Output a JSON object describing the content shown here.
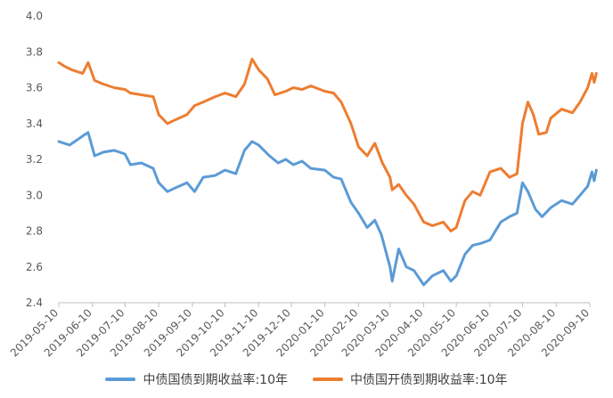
{
  "chart_data": {
    "type": "line",
    "title": "",
    "xlabel": "",
    "ylabel": "",
    "ylim": [
      2.4,
      4.0
    ],
    "yticks": [
      "2.4",
      "2.6",
      "2.8",
      "3.0",
      "3.2",
      "3.4",
      "3.6",
      "3.8",
      "4.0"
    ],
    "xticks": [
      "2019-05-10",
      "2019-06-10",
      "2019-07-10",
      "2019-08-10",
      "2019-09-10",
      "2019-10-10",
      "2019-11-10",
      "2019-12-10",
      "2020-01-10",
      "2020-02-10",
      "2020-03-10",
      "2020-04-10",
      "2020-05-10",
      "2020-06-10",
      "2020-07-10",
      "2020-08-10",
      "2020-09-10"
    ],
    "grid": false,
    "legend_position": "bottom",
    "series": [
      {
        "name": "中债国债到期收益率:10年",
        "color": "#5B9BD5",
        "points": [
          [
            "2019-05-10",
            3.3
          ],
          [
            "2019-05-20",
            3.28
          ],
          [
            "2019-06-01",
            3.33
          ],
          [
            "2019-06-06",
            3.35
          ],
          [
            "2019-06-12",
            3.22
          ],
          [
            "2019-06-20",
            3.24
          ],
          [
            "2019-06-30",
            3.25
          ],
          [
            "2019-07-10",
            3.23
          ],
          [
            "2019-07-15",
            3.17
          ],
          [
            "2019-07-25",
            3.18
          ],
          [
            "2019-08-05",
            3.15
          ],
          [
            "2019-08-10",
            3.07
          ],
          [
            "2019-08-18",
            3.02
          ],
          [
            "2019-08-25",
            3.04
          ],
          [
            "2019-09-05",
            3.07
          ],
          [
            "2019-09-12",
            3.02
          ],
          [
            "2019-09-20",
            3.1
          ],
          [
            "2019-10-01",
            3.11
          ],
          [
            "2019-10-10",
            3.14
          ],
          [
            "2019-10-20",
            3.12
          ],
          [
            "2019-10-28",
            3.25
          ],
          [
            "2019-11-04",
            3.3
          ],
          [
            "2019-11-10",
            3.28
          ],
          [
            "2019-11-20",
            3.22
          ],
          [
            "2019-11-28",
            3.18
          ],
          [
            "2019-12-05",
            3.2
          ],
          [
            "2019-12-12",
            3.17
          ],
          [
            "2019-12-20",
            3.19
          ],
          [
            "2019-12-28",
            3.15
          ],
          [
            "2020-01-10",
            3.14
          ],
          [
            "2020-01-18",
            3.1
          ],
          [
            "2020-01-25",
            3.09
          ],
          [
            "2020-02-03",
            2.96
          ],
          [
            "2020-02-10",
            2.9
          ],
          [
            "2020-02-18",
            2.82
          ],
          [
            "2020-02-25",
            2.86
          ],
          [
            "2020-03-02",
            2.78
          ],
          [
            "2020-03-10",
            2.6
          ],
          [
            "2020-03-12",
            2.52
          ],
          [
            "2020-03-18",
            2.7
          ],
          [
            "2020-03-25",
            2.6
          ],
          [
            "2020-04-01",
            2.58
          ],
          [
            "2020-04-10",
            2.5
          ],
          [
            "2020-04-18",
            2.55
          ],
          [
            "2020-04-28",
            2.58
          ],
          [
            "2020-05-05",
            2.52
          ],
          [
            "2020-05-10",
            2.55
          ],
          [
            "2020-05-18",
            2.67
          ],
          [
            "2020-05-25",
            2.72
          ],
          [
            "2020-06-01",
            2.73
          ],
          [
            "2020-06-10",
            2.75
          ],
          [
            "2020-06-20",
            2.85
          ],
          [
            "2020-06-28",
            2.88
          ],
          [
            "2020-07-05",
            2.9
          ],
          [
            "2020-07-10",
            3.07
          ],
          [
            "2020-07-15",
            3.02
          ],
          [
            "2020-07-22",
            2.92
          ],
          [
            "2020-07-28",
            2.88
          ],
          [
            "2020-08-05",
            2.93
          ],
          [
            "2020-08-15",
            2.97
          ],
          [
            "2020-08-25",
            2.95
          ],
          [
            "2020-09-01",
            3.0
          ],
          [
            "2020-09-08",
            3.05
          ],
          [
            "2020-09-12",
            3.13
          ],
          [
            "2020-09-14",
            3.08
          ],
          [
            "2020-09-16",
            3.14
          ]
        ]
      },
      {
        "name": "中债国开债到期收益率:10年",
        "color": "#ED7D31",
        "points": [
          [
            "2019-05-10",
            3.74
          ],
          [
            "2019-05-15",
            3.72
          ],
          [
            "2019-05-22",
            3.7
          ],
          [
            "2019-06-01",
            3.68
          ],
          [
            "2019-06-06",
            3.74
          ],
          [
            "2019-06-12",
            3.64
          ],
          [
            "2019-06-20",
            3.62
          ],
          [
            "2019-06-30",
            3.6
          ],
          [
            "2019-07-10",
            3.59
          ],
          [
            "2019-07-15",
            3.57
          ],
          [
            "2019-07-25",
            3.56
          ],
          [
            "2019-08-05",
            3.55
          ],
          [
            "2019-08-10",
            3.45
          ],
          [
            "2019-08-18",
            3.4
          ],
          [
            "2019-08-25",
            3.42
          ],
          [
            "2019-09-05",
            3.45
          ],
          [
            "2019-09-12",
            3.5
          ],
          [
            "2019-09-20",
            3.52
          ],
          [
            "2019-10-01",
            3.55
          ],
          [
            "2019-10-10",
            3.57
          ],
          [
            "2019-10-20",
            3.55
          ],
          [
            "2019-10-28",
            3.62
          ],
          [
            "2019-11-04",
            3.76
          ],
          [
            "2019-11-10",
            3.7
          ],
          [
            "2019-11-18",
            3.65
          ],
          [
            "2019-11-25",
            3.56
          ],
          [
            "2019-12-05",
            3.58
          ],
          [
            "2019-12-12",
            3.6
          ],
          [
            "2019-12-20",
            3.59
          ],
          [
            "2019-12-28",
            3.61
          ],
          [
            "2020-01-10",
            3.58
          ],
          [
            "2020-01-18",
            3.57
          ],
          [
            "2020-01-25",
            3.52
          ],
          [
            "2020-02-03",
            3.4
          ],
          [
            "2020-02-10",
            3.27
          ],
          [
            "2020-02-18",
            3.22
          ],
          [
            "2020-02-25",
            3.29
          ],
          [
            "2020-03-03",
            3.18
          ],
          [
            "2020-03-10",
            3.1
          ],
          [
            "2020-03-12",
            3.03
          ],
          [
            "2020-03-18",
            3.06
          ],
          [
            "2020-03-25",
            3.0
          ],
          [
            "2020-04-01",
            2.95
          ],
          [
            "2020-04-10",
            2.85
          ],
          [
            "2020-04-18",
            2.83
          ],
          [
            "2020-04-28",
            2.85
          ],
          [
            "2020-05-05",
            2.8
          ],
          [
            "2020-05-10",
            2.82
          ],
          [
            "2020-05-18",
            2.97
          ],
          [
            "2020-05-25",
            3.02
          ],
          [
            "2020-06-01",
            3.0
          ],
          [
            "2020-06-10",
            3.13
          ],
          [
            "2020-06-20",
            3.15
          ],
          [
            "2020-06-28",
            3.1
          ],
          [
            "2020-07-05",
            3.12
          ],
          [
            "2020-07-10",
            3.4
          ],
          [
            "2020-07-15",
            3.52
          ],
          [
            "2020-07-20",
            3.45
          ],
          [
            "2020-07-25",
            3.34
          ],
          [
            "2020-08-01",
            3.35
          ],
          [
            "2020-08-05",
            3.43
          ],
          [
            "2020-08-15",
            3.48
          ],
          [
            "2020-08-25",
            3.46
          ],
          [
            "2020-09-01",
            3.52
          ],
          [
            "2020-09-08",
            3.6
          ],
          [
            "2020-09-12",
            3.68
          ],
          [
            "2020-09-14",
            3.63
          ],
          [
            "2020-09-16",
            3.68
          ]
        ]
      }
    ]
  }
}
